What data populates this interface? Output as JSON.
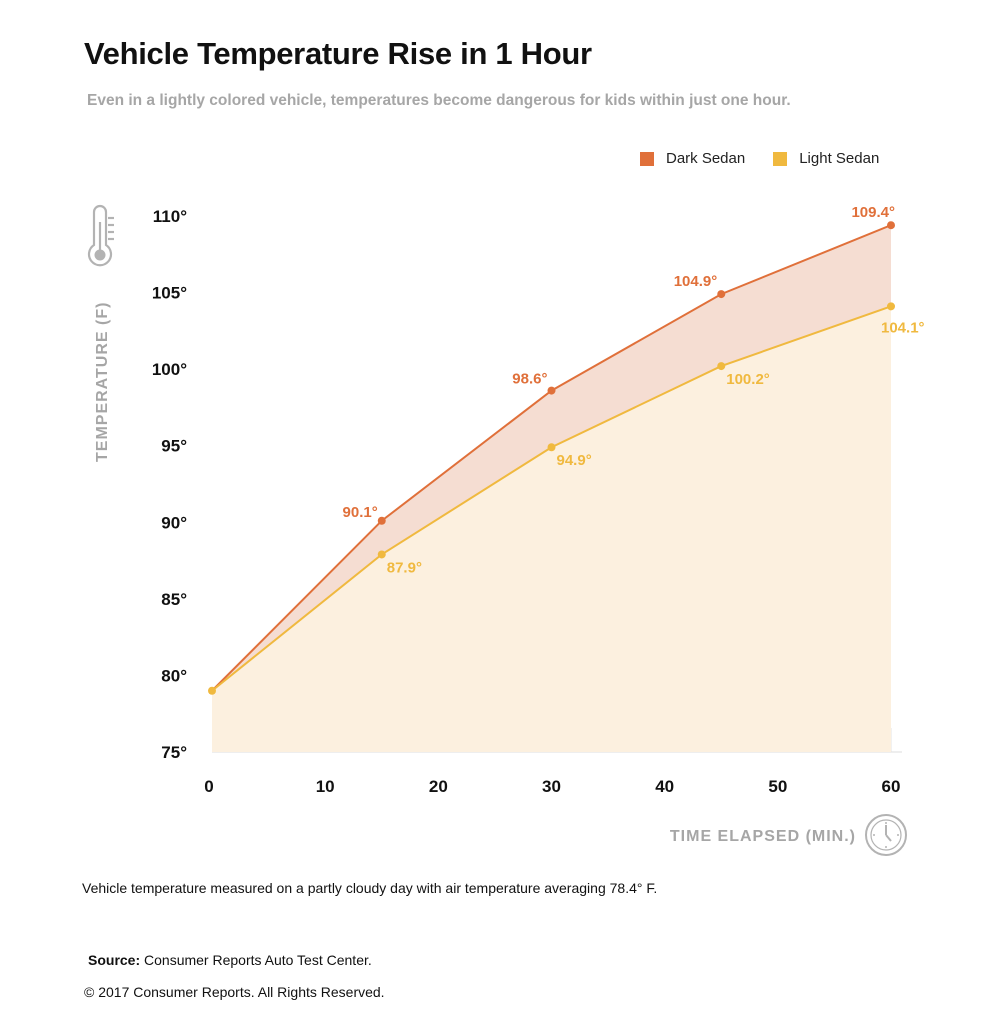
{
  "header": {
    "title": "Vehicle Temperature Rise in 1 Hour",
    "subtitle": "Even in a lightly colored vehicle, temperatures become dangerous for kids within just one hour."
  },
  "colors": {
    "dark": "#e0703a",
    "light": "#f0b93f",
    "dark_fill": "#f5ddd2",
    "light_fill": "#fcf0df",
    "axis_title": "#a6a6a6",
    "grid": "#e3e3e3"
  },
  "icons": {
    "y_axis": "thermometer-icon",
    "x_axis": "clock-icon"
  },
  "chart_data": {
    "type": "area",
    "x": [
      0,
      15,
      30,
      45,
      60
    ],
    "series": [
      {
        "name": "Dark Sedan",
        "values": [
          79.0,
          90.1,
          98.6,
          104.9,
          109.4
        ],
        "labels": [
          "",
          "90.1°",
          "98.6°",
          "104.9°",
          "109.4°"
        ]
      },
      {
        "name": "Light Sedan",
        "values": [
          79.0,
          87.9,
          94.9,
          100.2,
          104.1
        ],
        "labels": [
          "",
          "87.9°",
          "94.9°",
          "100.2°",
          "104.1°"
        ]
      }
    ],
    "xlabel": "TIME ELAPSED (MIN.)",
    "ylabel": "TEMPERATURE (F)",
    "xticks": [
      0,
      10,
      20,
      30,
      40,
      50,
      60
    ],
    "yticks": [
      75,
      80,
      85,
      90,
      95,
      100,
      105,
      110
    ],
    "ytick_labels": [
      "75°",
      "80°",
      "85°",
      "90°",
      "95°",
      "100°",
      "105°",
      "110°"
    ],
    "xlim": [
      0,
      60
    ],
    "ylim": [
      75,
      110
    ],
    "legend": "top-right",
    "grid": "vertical"
  },
  "footer": {
    "note": "Vehicle temperature measured on a partly cloudy day with air temperature averaging 78.4° F.",
    "source_label": "Source:",
    "source_text": " Consumer Reports Auto Test Center.",
    "copyright": "© 2017 Consumer Reports. All Rights Reserved."
  }
}
